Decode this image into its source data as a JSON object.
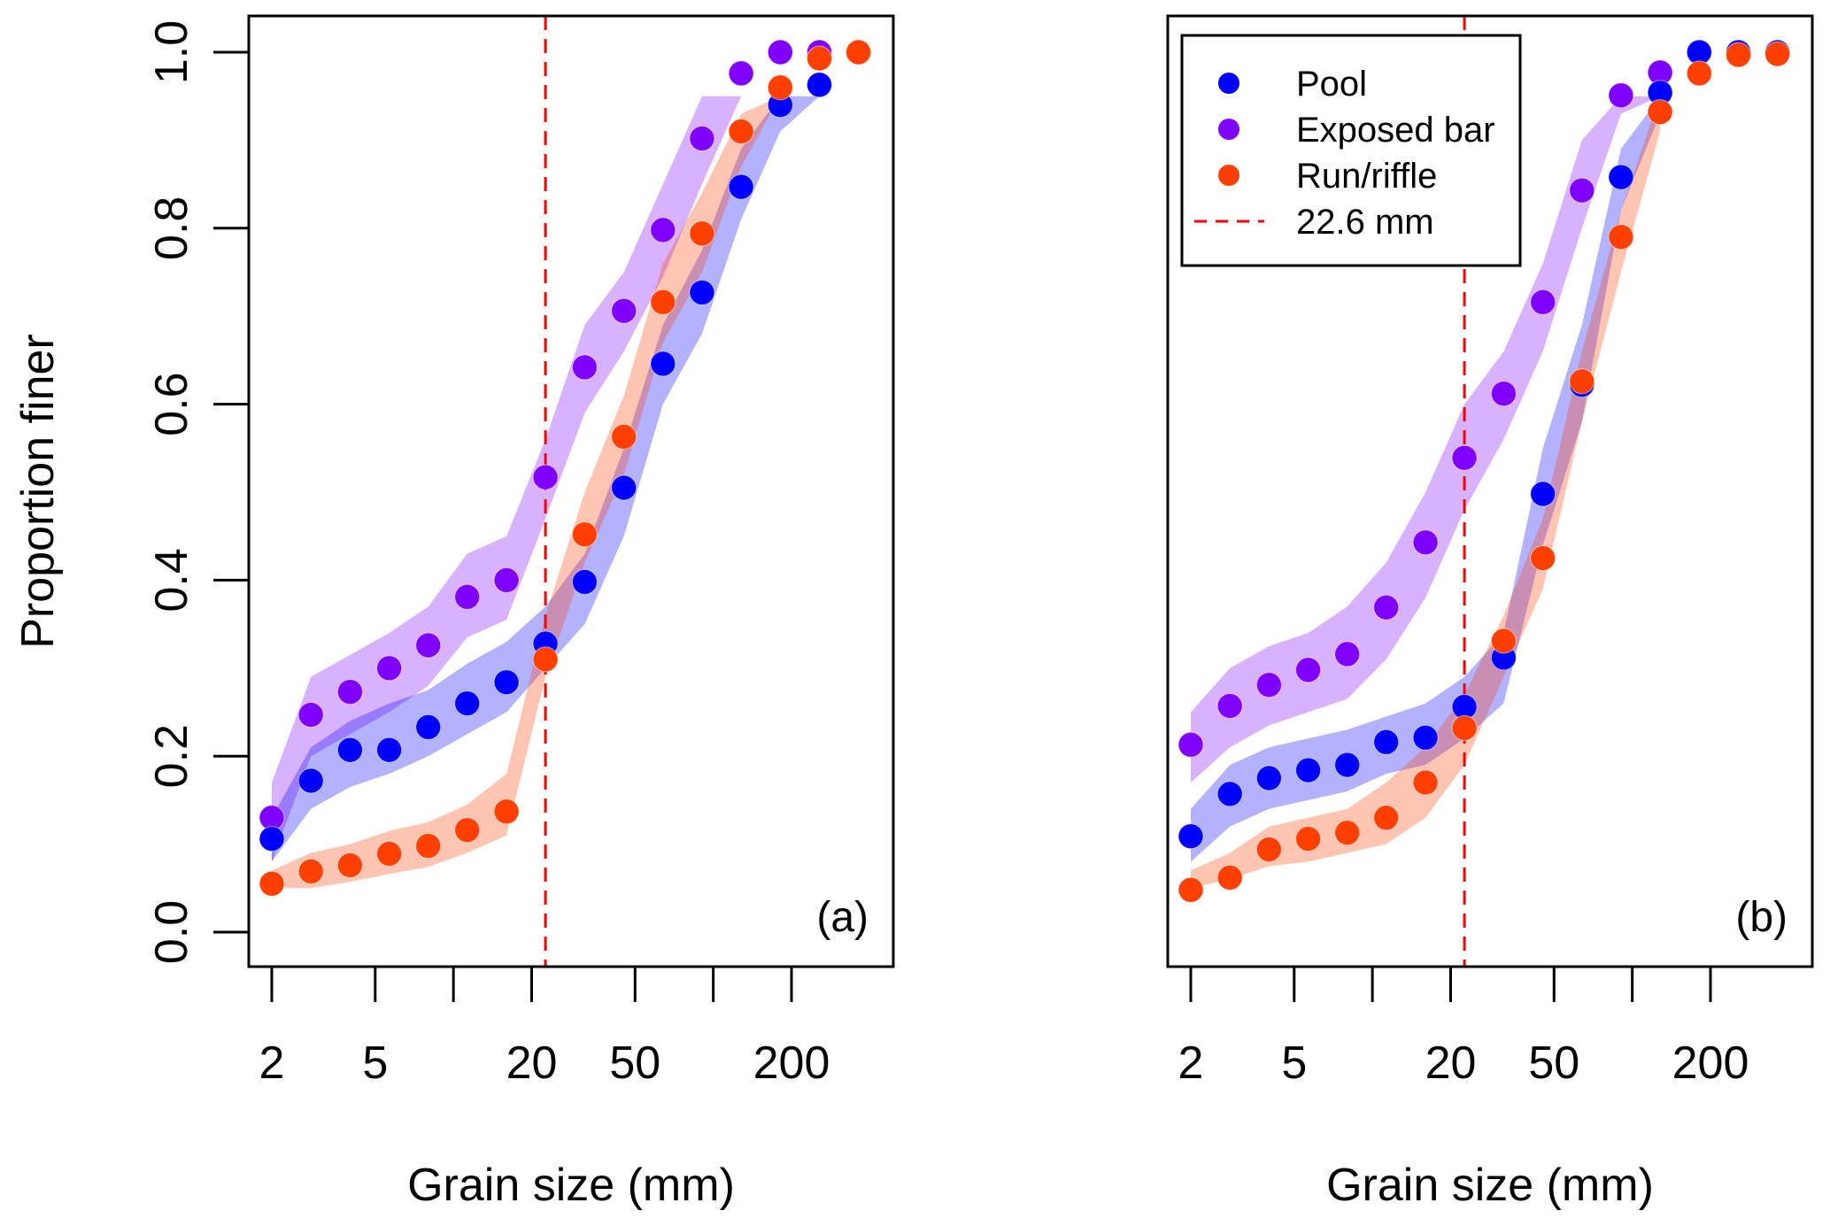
{
  "chart_data": [
    {
      "type": "scatter",
      "panel_label": "(a)",
      "xlabel": "Grain size (mm)",
      "ylabel": "Proportion finer",
      "xscale": "log",
      "xlim": [
        1.8,
        420
      ],
      "ylim": [
        -0.04,
        1.04
      ],
      "xticks": [
        2,
        5,
        10,
        20,
        50,
        100,
        200
      ],
      "xtick_labels": [
        "2",
        "5",
        "",
        "20",
        "50",
        "",
        "200"
      ],
      "yticks": [
        0.0,
        0.2,
        0.4,
        0.6,
        0.8,
        1.0
      ],
      "ytick_labels": [
        "0.0",
        "0.2",
        "0.4",
        "0.6",
        "0.8",
        "1.0"
      ],
      "grid": false,
      "reference_line": {
        "x": 22.6,
        "label": "22.6 mm",
        "color": "#FF0000",
        "style": "dashed"
      },
      "x": [
        2,
        2.83,
        4,
        5.66,
        8,
        11.3,
        16,
        22.6,
        32,
        45.3,
        64,
        90.5,
        128,
        181,
        256,
        362
      ],
      "series": [
        {
          "name": "Exposed bar",
          "color": "#8000FF",
          "band_color": "#D9B3FF",
          "values": [
            0.13,
            0.247,
            0.273,
            0.3,
            0.326,
            0.381,
            0.4,
            0.517,
            0.642,
            0.706,
            0.798,
            0.902,
            0.976,
            1.0,
            1.0,
            1.0
          ],
          "band_lo": [
            0.08,
            0.2,
            0.225,
            0.25,
            0.28,
            0.335,
            0.355,
            0.47,
            0.59,
            0.66,
            0.745,
            0.85,
            0.95
          ],
          "band_hi": [
            0.17,
            0.29,
            0.315,
            0.34,
            0.37,
            0.43,
            0.45,
            0.56,
            0.69,
            0.75,
            0.85,
            0.95,
            0.95
          ]
        },
        {
          "name": "Pool",
          "color": "#0000FF",
          "band_color": "#B3B3FF",
          "values": [
            0.106,
            0.172,
            0.207,
            0.207,
            0.233,
            0.26,
            0.284,
            0.328,
            0.398,
            0.505,
            0.646,
            0.727,
            0.847,
            0.94,
            0.963,
            1.0
          ],
          "band_lo": [
            0.08,
            0.14,
            0.165,
            0.18,
            0.2,
            0.225,
            0.25,
            0.3,
            0.35,
            0.45,
            0.6,
            0.68,
            0.81,
            0.91,
            0.95
          ],
          "band_hi": [
            0.13,
            0.21,
            0.24,
            0.26,
            0.275,
            0.305,
            0.33,
            0.37,
            0.43,
            0.55,
            0.69,
            0.775,
            0.89,
            0.95,
            0.95
          ]
        },
        {
          "name": "Run/riffle",
          "color": "#FF4000",
          "band_color": "#FFC4B0",
          "values": [
            0.055,
            0.069,
            0.076,
            0.089,
            0.098,
            0.116,
            0.137,
            0.31,
            0.452,
            0.563,
            0.716,
            0.794,
            0.91,
            0.96,
            0.993,
            1.0
          ],
          "band_lo": [
            0.05,
            0.05,
            0.057,
            0.066,
            0.074,
            0.09,
            0.11,
            0.29,
            0.42,
            0.52,
            0.67,
            0.75,
            0.87,
            0.95
          ],
          "band_hi": [
            0.07,
            0.09,
            0.1,
            0.115,
            0.125,
            0.145,
            0.18,
            0.36,
            0.5,
            0.61,
            0.76,
            0.84,
            0.93,
            0.95
          ]
        }
      ]
    },
    {
      "type": "scatter",
      "panel_label": "(b)",
      "xlabel": "Grain size (mm)",
      "ylabel": "",
      "xscale": "log",
      "xlim": [
        1.8,
        420
      ],
      "ylim": [
        -0.04,
        1.04
      ],
      "xticks": [
        2,
        5,
        10,
        20,
        50,
        100,
        200
      ],
      "xtick_labels": [
        "2",
        "5",
        "",
        "20",
        "50",
        "",
        "200"
      ],
      "yticks": [],
      "ytick_labels": [],
      "grid": false,
      "legend": {
        "position": "top-left",
        "entries": [
          {
            "label": "Pool",
            "color": "#0000FF",
            "marker": "circle"
          },
          {
            "label": "Exposed bar",
            "color": "#8000FF",
            "marker": "circle"
          },
          {
            "label": "Run/riffle",
            "color": "#FF4000",
            "marker": "circle"
          },
          {
            "label": "22.6 mm",
            "color": "#FF0000",
            "marker": "dashed-line"
          }
        ]
      },
      "reference_line": {
        "x": 22.6,
        "label": "22.6 mm",
        "color": "#FF0000",
        "style": "dashed"
      },
      "x": [
        2,
        2.83,
        4,
        5.66,
        8,
        11.3,
        16,
        22.6,
        32,
        45.3,
        64,
        90.5,
        128,
        181,
        256,
        362
      ],
      "series": [
        {
          "name": "Exposed bar",
          "color": "#8000FF",
          "band_color": "#D9B3FF",
          "values": [
            0.213,
            0.257,
            0.281,
            0.298,
            0.316,
            0.369,
            0.443,
            0.539,
            0.612,
            0.716,
            0.843,
            0.951,
            0.977,
            1.0,
            1.0,
            1.0
          ],
          "band_lo": [
            0.17,
            0.21,
            0.235,
            0.25,
            0.265,
            0.31,
            0.38,
            0.48,
            0.56,
            0.66,
            0.8,
            0.93,
            0.95
          ],
          "band_hi": [
            0.25,
            0.3,
            0.325,
            0.34,
            0.37,
            0.42,
            0.5,
            0.6,
            0.66,
            0.76,
            0.9,
            0.95,
            0.95
          ]
        },
        {
          "name": "Pool",
          "color": "#0000FF",
          "band_color": "#B3B3FF",
          "values": [
            0.109,
            0.157,
            0.175,
            0.184,
            0.19,
            0.216,
            0.221,
            0.256,
            0.312,
            0.498,
            0.622,
            0.858,
            0.954,
            1.0,
            1.0,
            1.0
          ],
          "band_lo": [
            0.08,
            0.12,
            0.14,
            0.15,
            0.16,
            0.18,
            0.19,
            0.22,
            0.26,
            0.44,
            0.58,
            0.82,
            0.93
          ],
          "band_hi": [
            0.14,
            0.19,
            0.21,
            0.22,
            0.23,
            0.245,
            0.26,
            0.29,
            0.34,
            0.55,
            0.69,
            0.89,
            0.95
          ]
        },
        {
          "name": "Run/riffle",
          "color": "#FF4000",
          "band_color": "#FFC4B0",
          "values": [
            0.048,
            0.062,
            0.094,
            0.106,
            0.113,
            0.13,
            0.17,
            0.232,
            0.331,
            0.425,
            0.626,
            0.79,
            0.932,
            0.976,
            0.997,
            0.998
          ],
          "band_lo": [
            0.05,
            0.06,
            0.075,
            0.08,
            0.09,
            0.1,
            0.13,
            0.19,
            0.29,
            0.39,
            0.58,
            0.75,
            0.91
          ],
          "band_hi": [
            0.07,
            0.09,
            0.12,
            0.13,
            0.14,
            0.17,
            0.21,
            0.27,
            0.36,
            0.47,
            0.66,
            0.82,
            0.95
          ]
        }
      ]
    }
  ]
}
